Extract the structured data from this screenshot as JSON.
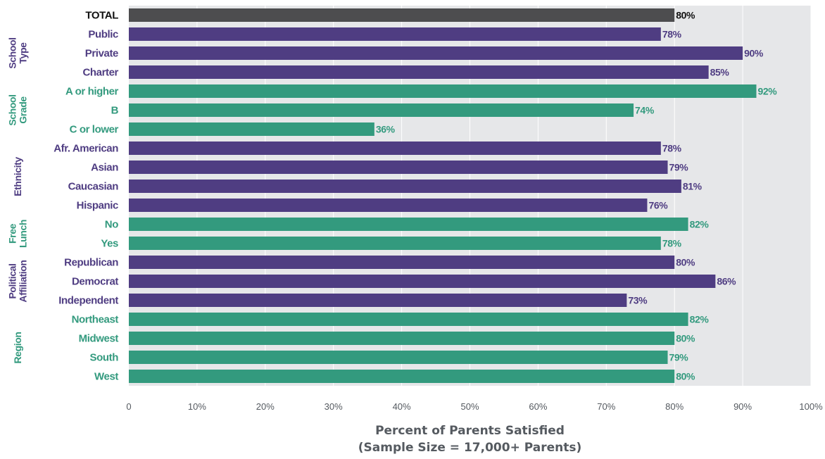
{
  "chart_data": {
    "type": "bar",
    "orientation": "horizontal",
    "xlabel": "Percent of Parents Satisfied",
    "xlabel_sub": "(Sample Size = 17,000+ Parents)",
    "xlim": [
      0,
      100
    ],
    "x_ticks": [
      "0",
      "10%",
      "20%",
      "30%",
      "40%",
      "50%",
      "60%",
      "70%",
      "80%",
      "90%",
      "100%"
    ],
    "grid": "vertical",
    "categories": [
      "TOTAL",
      "Public",
      "Private",
      "Charter",
      "A or higher",
      "B",
      "C or lower",
      "Afr. American",
      "Asian",
      "Caucasian",
      "Hispanic",
      "No",
      "Yes",
      "Republican",
      "Democrat",
      "Independent",
      "Northeast",
      "Midwest",
      "South",
      "West"
    ],
    "values": [
      80,
      78,
      90,
      85,
      92,
      74,
      36,
      78,
      79,
      81,
      76,
      82,
      78,
      80,
      86,
      73,
      82,
      80,
      79,
      80
    ],
    "value_labels": [
      "80%",
      "78%",
      "90%",
      "85%",
      "92%",
      "74%",
      "36%",
      "78%",
      "79%",
      "81%",
      "76%",
      "82%",
      "78%",
      "80%",
      "86%",
      "73%",
      "82%",
      "80%",
      "79%",
      "80%"
    ],
    "bar_groups": [
      "total",
      "purple",
      "purple",
      "purple",
      "teal",
      "teal",
      "teal",
      "purple",
      "purple",
      "purple",
      "purple",
      "teal",
      "teal",
      "purple",
      "purple",
      "purple",
      "teal",
      "teal",
      "teal",
      "teal"
    ],
    "groups": [
      {
        "lines": [
          "School",
          "Type"
        ],
        "first": 1,
        "last": 3,
        "color": "purple"
      },
      {
        "lines": [
          "School",
          "Grade"
        ],
        "first": 4,
        "last": 6,
        "color": "teal"
      },
      {
        "lines": [
          "Ethnicity"
        ],
        "first": 7,
        "last": 10,
        "color": "purple"
      },
      {
        "lines": [
          "Free",
          "Lunch"
        ],
        "first": 11,
        "last": 12,
        "color": "teal"
      },
      {
        "lines": [
          "Political",
          "Affiliation"
        ],
        "first": 13,
        "last": 15,
        "color": "purple"
      },
      {
        "lines": [
          "Region"
        ],
        "first": 16,
        "last": 19,
        "color": "teal"
      }
    ],
    "colors": {
      "total": "#4d4d4f",
      "purple": "#4f3d82",
      "teal": "#339a7e",
      "total_label": "#111111",
      "axis_text": "#555a60",
      "plot_bg": "#e6e7e9",
      "grid": "#ffffff"
    }
  }
}
